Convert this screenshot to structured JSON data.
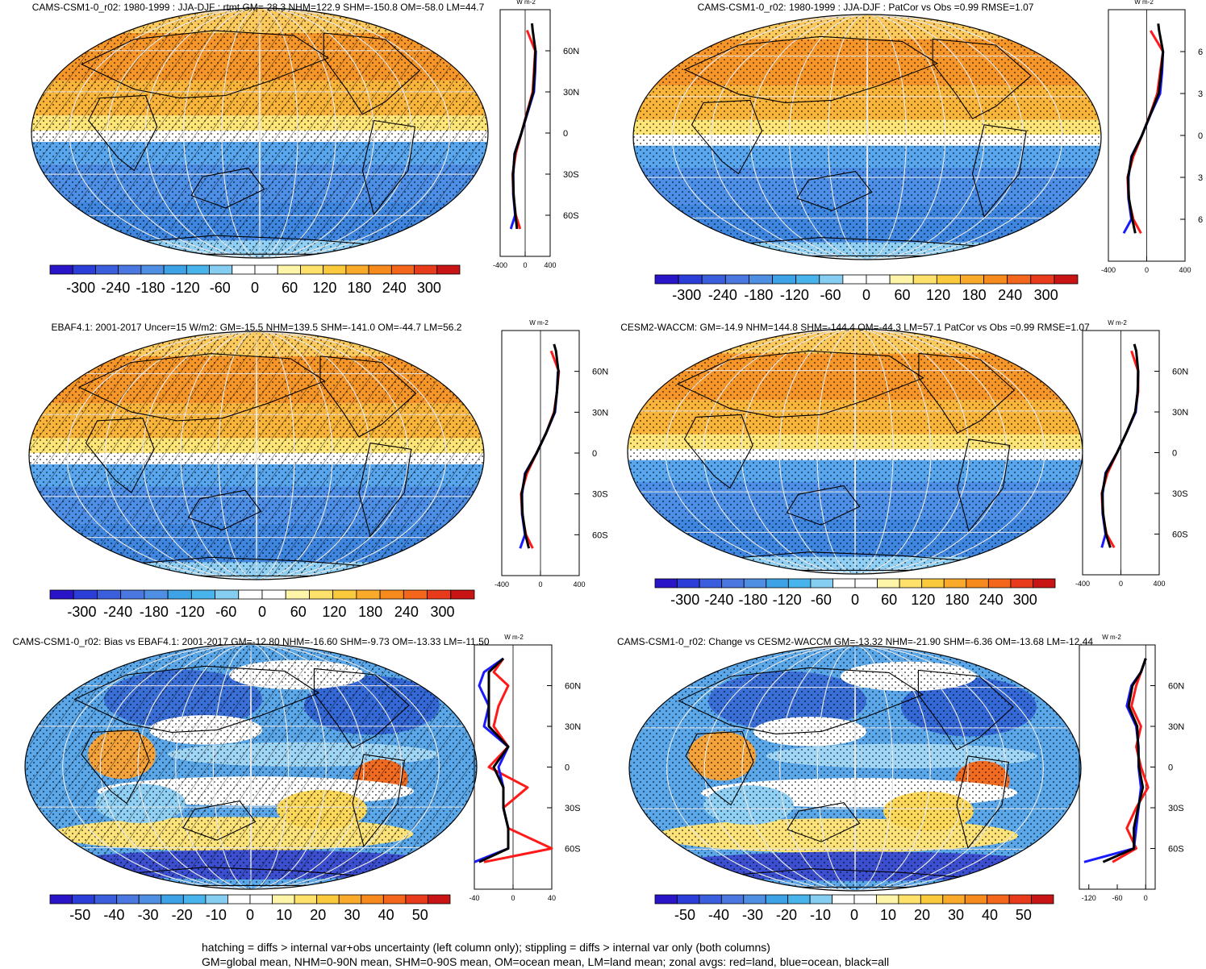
{
  "panels": [
    {
      "title": "CAMS-CSM1-0_r02: 1980-1999 : JJA-DJF : rtmt GM=-28.3 NHM=122.9 SHM=-150.8 OM=-58.0 LM=44.7",
      "units": "W m-2",
      "type": "mean",
      "hatching": true,
      "colorbar_labels": [
        "-300",
        "-240",
        "-180",
        "-120",
        "-60",
        "0",
        "60",
        "120",
        "180",
        "240",
        "300"
      ],
      "zonal_x_ticks": [
        "-400",
        "0",
        "400"
      ],
      "zonal_x_range": [
        -400,
        400
      ],
      "zonal_y_labels": [
        "60N",
        "30N",
        "0",
        "30S",
        "60S"
      ]
    },
    {
      "title": "CAMS-CSM1-0_r02: 1980-1999 : JJA-DJF : PatCor vs Obs =0.99 RMSE=1.07",
      "units": "W m-2",
      "type": "mean",
      "hatching": false,
      "colorbar_labels": [
        "-300",
        "-240",
        "-180",
        "-120",
        "-60",
        "0",
        "60",
        "120",
        "180",
        "240",
        "300"
      ],
      "zonal_x_ticks": [
        "-400",
        "0",
        "400"
      ],
      "zonal_x_range": [
        -400,
        400
      ],
      "zonal_y_labels": [
        "6",
        "3",
        "0",
        "3",
        "6"
      ]
    },
    {
      "title": "EBAF4.1: 2001-2017 Uncer=15 W/m2: GM=-15.5 NHM=139.5 SHM=-141.0 OM=-44.7 LM=56.2",
      "units": "W m-2",
      "type": "mean",
      "hatching": true,
      "colorbar_labels": [
        "-300",
        "-240",
        "-180",
        "-120",
        "-60",
        "0",
        "60",
        "120",
        "180",
        "240",
        "300"
      ],
      "zonal_x_ticks": [
        "-400",
        "0",
        "400"
      ],
      "zonal_x_range": [
        -400,
        400
      ],
      "zonal_y_labels": [
        "60N",
        "30N",
        "0",
        "30S",
        "60S"
      ]
    },
    {
      "title": "CESM2-WACCM: GM=-14.9 NHM=144.8 SHM=-144.4 OM=-44.3 LM=57.1 PatCor vs Obs =0.99 RMSE=1.07",
      "units": "W m-2",
      "type": "mean",
      "hatching": false,
      "colorbar_labels": [
        "-300",
        "-240",
        "-180",
        "-120",
        "-60",
        "0",
        "60",
        "120",
        "180",
        "240",
        "300"
      ],
      "zonal_x_ticks": [
        "-400",
        "0",
        "400"
      ],
      "zonal_x_range": [
        -400,
        400
      ],
      "zonal_y_labels": [
        "60N",
        "30N",
        "0",
        "30S",
        "60S"
      ]
    },
    {
      "title": "CAMS-CSM1-0_r02: Bias vs EBAF4.1: 2001-2017 GM=-12.80 NHM=-16.60 SHM=-9.73 OM=-13.33 LM=-11.50",
      "units": "W m-2",
      "type": "diff",
      "hatching": true,
      "colorbar_labels": [
        "-50",
        "-40",
        "-30",
        "-20",
        "-10",
        "0",
        "10",
        "20",
        "30",
        "40",
        "50"
      ],
      "zonal_x_ticks": [
        "-40",
        "0",
        "40"
      ],
      "zonal_x_range": [
        -40,
        40
      ],
      "zonal_y_labels": [
        "60N",
        "30N",
        "0",
        "30S",
        "60S"
      ]
    },
    {
      "title": "CAMS-CSM1-0_r02: Change vs CESM2-WACCM GM=-13.32 NHM=-21.90 SHM=-6.36 OM=-13.68 LM=-12.44",
      "units": "W m-2",
      "type": "diff",
      "hatching": false,
      "colorbar_labels": [
        "-50",
        "-40",
        "-30",
        "-20",
        "-10",
        "0",
        "10",
        "20",
        "30",
        "40",
        "50"
      ],
      "zonal_x_ticks": [
        "-120",
        "-60",
        "0"
      ],
      "zonal_x_range": [
        -140,
        20
      ],
      "zonal_y_labels": [
        "60N",
        "30N",
        "0",
        "30S",
        "60S"
      ]
    }
  ],
  "footer": {
    "line1": "hatching = diffs > internal var+obs uncertainty (left column only); stippling = diffs > internal var only (both columns)",
    "line2": "GM=global mean, NHM=0-90N mean, SHM=0-90S mean, OM=ocean mean, LM=land mean; zonal avgs: red=land, blue=ocean, black=all"
  },
  "colors": {
    "colorbar": [
      "#2a14c8",
      "#2b3fd8",
      "#3b5fdc",
      "#4a78e0",
      "#4e8fe4",
      "#3da2e6",
      "#49b4ec",
      "#86cdf2",
      "#ffffff",
      "#ffffff",
      "#fff5a8",
      "#fde16a",
      "#fbc93c",
      "#f9aa2a",
      "#f78a1c",
      "#f3661c",
      "#e83b1c",
      "#c81414"
    ],
    "land_line": "#ff1a1a",
    "ocean_line": "#1a1aff",
    "all_line": "#000000"
  },
  "chart_data": [
    {
      "type": "line",
      "series": [
        {
          "name": "land",
          "x": [
            null,
            30,
            160,
            140,
            120,
            30,
            -60,
            -150,
            -200,
            -190,
            -150,
            -80
          ],
          "y": [
            80,
            75,
            60,
            45,
            30,
            15,
            0,
            -15,
            -30,
            -45,
            -60,
            -70
          ]
        },
        {
          "name": "ocean",
          "x": [
            null,
            null,
            170,
            160,
            140,
            40,
            -60,
            -170,
            -190,
            -190,
            -160,
            -230
          ],
          "y": [
            80,
            75,
            60,
            45,
            30,
            15,
            0,
            -15,
            -30,
            -45,
            -60,
            -70
          ]
        },
        {
          "name": "all",
          "x": [
            110,
            120,
            165,
            150,
            130,
            35,
            -60,
            -165,
            -195,
            -185,
            -155,
            -130
          ],
          "y": [
            80,
            75,
            60,
            45,
            30,
            15,
            0,
            -15,
            -30,
            -45,
            -60,
            -70
          ]
        }
      ]
    },
    {
      "type": "line",
      "series": [
        {
          "name": "land",
          "x": [
            null,
            40,
            170,
            140,
            110,
            35,
            -50,
            -140,
            -200,
            -190,
            -140,
            -60
          ],
          "y": [
            80,
            75,
            60,
            45,
            30,
            15,
            0,
            -15,
            -30,
            -45,
            -60,
            -70
          ]
        },
        {
          "name": "ocean",
          "x": [
            null,
            null,
            170,
            160,
            140,
            40,
            -50,
            -160,
            -190,
            -190,
            -160,
            -240
          ],
          "y": [
            80,
            75,
            60,
            45,
            30,
            15,
            0,
            -15,
            -30,
            -45,
            -60,
            -70
          ]
        },
        {
          "name": "all",
          "x": [
            120,
            130,
            170,
            150,
            125,
            38,
            -50,
            -155,
            -195,
            -185,
            -150,
            -120
          ],
          "y": [
            80,
            75,
            60,
            45,
            30,
            15,
            0,
            -15,
            -30,
            -45,
            -60,
            -70
          ]
        }
      ]
    },
    {
      "type": "line",
      "series": [
        {
          "name": "land",
          "x": [
            null,
            110,
            190,
            170,
            140,
            60,
            -40,
            -140,
            -200,
            -190,
            -150,
            -80
          ],
          "y": [
            80,
            75,
            60,
            45,
            30,
            15,
            0,
            -15,
            -30,
            -45,
            -60,
            -70
          ]
        },
        {
          "name": "ocean",
          "x": [
            null,
            null,
            180,
            170,
            150,
            60,
            -40,
            -160,
            -190,
            -190,
            -160,
            -210
          ],
          "y": [
            80,
            75,
            60,
            45,
            30,
            15,
            0,
            -15,
            -30,
            -45,
            -60,
            -70
          ]
        },
        {
          "name": "all",
          "x": [
            140,
            160,
            185,
            170,
            145,
            60,
            -40,
            -155,
            -195,
            -185,
            -155,
            -120
          ],
          "y": [
            80,
            75,
            60,
            45,
            30,
            15,
            0,
            -15,
            -30,
            -45,
            -60,
            -70
          ]
        }
      ]
    },
    {
      "type": "line",
      "series": [
        {
          "name": "land",
          "x": [
            null,
            110,
            180,
            180,
            150,
            60,
            -40,
            -140,
            -200,
            -190,
            -150,
            -70
          ],
          "y": [
            80,
            75,
            60,
            45,
            30,
            15,
            0,
            -15,
            -30,
            -45,
            -60,
            -70
          ]
        },
        {
          "name": "ocean",
          "x": [
            null,
            null,
            180,
            175,
            155,
            60,
            -40,
            -160,
            -190,
            -190,
            -160,
            -200
          ],
          "y": [
            80,
            75,
            60,
            45,
            30,
            15,
            0,
            -15,
            -30,
            -45,
            -60,
            -70
          ]
        },
        {
          "name": "all",
          "x": [
            140,
            160,
            180,
            175,
            150,
            60,
            -40,
            -155,
            -195,
            -185,
            -155,
            -110
          ],
          "y": [
            80,
            75,
            60,
            45,
            30,
            15,
            0,
            -15,
            -30,
            -45,
            -60,
            -70
          ]
        }
      ]
    },
    {
      "type": "line",
      "series": [
        {
          "name": "land",
          "x": [
            -10,
            -20,
            -5,
            -15,
            -20,
            -5,
            -25,
            15,
            -10,
            -5,
            40,
            -30
          ],
          "y": [
            80,
            70,
            60,
            45,
            30,
            15,
            0,
            -15,
            -30,
            -45,
            -60,
            -70
          ]
        },
        {
          "name": "ocean",
          "x": [
            -10,
            -30,
            -35,
            -25,
            -30,
            -5,
            -15,
            -10,
            -10,
            -5,
            -5,
            -40
          ],
          "y": [
            80,
            70,
            60,
            45,
            30,
            15,
            0,
            -15,
            -30,
            -45,
            -60,
            -70
          ]
        },
        {
          "name": "all",
          "x": [
            -10,
            -25,
            -25,
            -25,
            -25,
            -5,
            -20,
            -10,
            -10,
            -5,
            -5,
            -35
          ],
          "y": [
            80,
            70,
            60,
            45,
            30,
            15,
            0,
            -15,
            -30,
            -45,
            -60,
            -70
          ]
        }
      ]
    },
    {
      "type": "line",
      "series": [
        {
          "name": "land",
          "x": [
            0,
            -10,
            -20,
            -30,
            -10,
            -20,
            -10,
            5,
            -20,
            -40,
            -20,
            -70
          ],
          "y": [
            80,
            70,
            60,
            45,
            30,
            15,
            0,
            -15,
            -30,
            -45,
            -60,
            -70
          ]
        },
        {
          "name": "ocean",
          "x": [
            0,
            -10,
            -30,
            -40,
            -20,
            -15,
            -15,
            -10,
            -15,
            -20,
            -25,
            -130
          ],
          "y": [
            80,
            70,
            60,
            45,
            30,
            15,
            0,
            -15,
            -30,
            -45,
            -60,
            -70
          ]
        },
        {
          "name": "all",
          "x": [
            0,
            -10,
            -28,
            -36,
            -18,
            -16,
            -14,
            -6,
            -16,
            -25,
            -25,
            -90
          ],
          "y": [
            80,
            70,
            60,
            45,
            30,
            15,
            0,
            -15,
            -30,
            -45,
            -60,
            -70
          ]
        }
      ]
    }
  ]
}
